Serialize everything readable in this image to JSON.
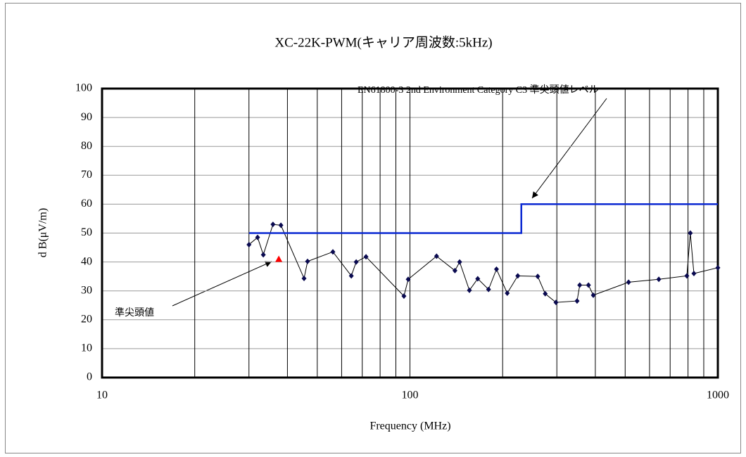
{
  "chart_data": {
    "type": "line",
    "title": "XC-22K-PWM(キャリア周波数:5kHz)",
    "x_label": "Frequency (MHz)",
    "y_label": "d B(μV/m)",
    "xscale": "log",
    "xlim": [
      10,
      1000
    ],
    "ylim": [
      0,
      100
    ],
    "xticks": [
      10,
      100,
      1000
    ],
    "xminor_ticks": [
      20,
      30,
      40,
      50,
      60,
      70,
      80,
      90,
      200,
      300,
      400,
      500,
      600,
      700,
      800,
      900
    ],
    "yticks": [
      0,
      10,
      20,
      30,
      40,
      50,
      60,
      70,
      80,
      90,
      100
    ],
    "grid": true,
    "series": [
      {
        "color": "#000000",
        "marker_color": "#0a0a50",
        "marker": "diamond",
        "x": [
          30,
          32,
          33.4,
          35.9,
          38.1,
          45.3,
          46.5,
          56.2,
          64.5,
          66.9,
          72,
          95.6,
          98.7,
          122,
          140,
          145,
          156,
          166,
          180,
          191,
          207,
          224,
          260,
          275,
          298,
          349,
          356,
          380,
          394,
          513,
          643,
          793,
          814,
          836,
          1000
        ],
        "values": [
          46,
          48.5,
          42.5,
          53,
          52.7,
          34.3,
          40.2,
          43.5,
          35.2,
          40,
          41.8,
          28.2,
          34,
          42,
          37,
          40,
          30.2,
          34.2,
          30.5,
          37.5,
          29.2,
          35.2,
          35,
          29,
          26,
          26.5,
          32,
          32,
          28.5,
          33,
          34,
          35.2,
          50,
          36,
          38
        ]
      },
      {
        "color": "#0a28d2",
        "marker": "none",
        "x": [
          30,
          230,
          230,
          1000
        ],
        "values": [
          50,
          50,
          60,
          60
        ]
      },
      {
        "color": "#ff0000",
        "marker": "triangle",
        "x": [
          37.5
        ],
        "values": [
          41
        ]
      }
    ],
    "annotations": [
      {
        "text": "EN61800-3 2nd Environment Category C3 準尖頭値レベル"
      },
      {
        "text": "準尖頭値"
      }
    ]
  }
}
